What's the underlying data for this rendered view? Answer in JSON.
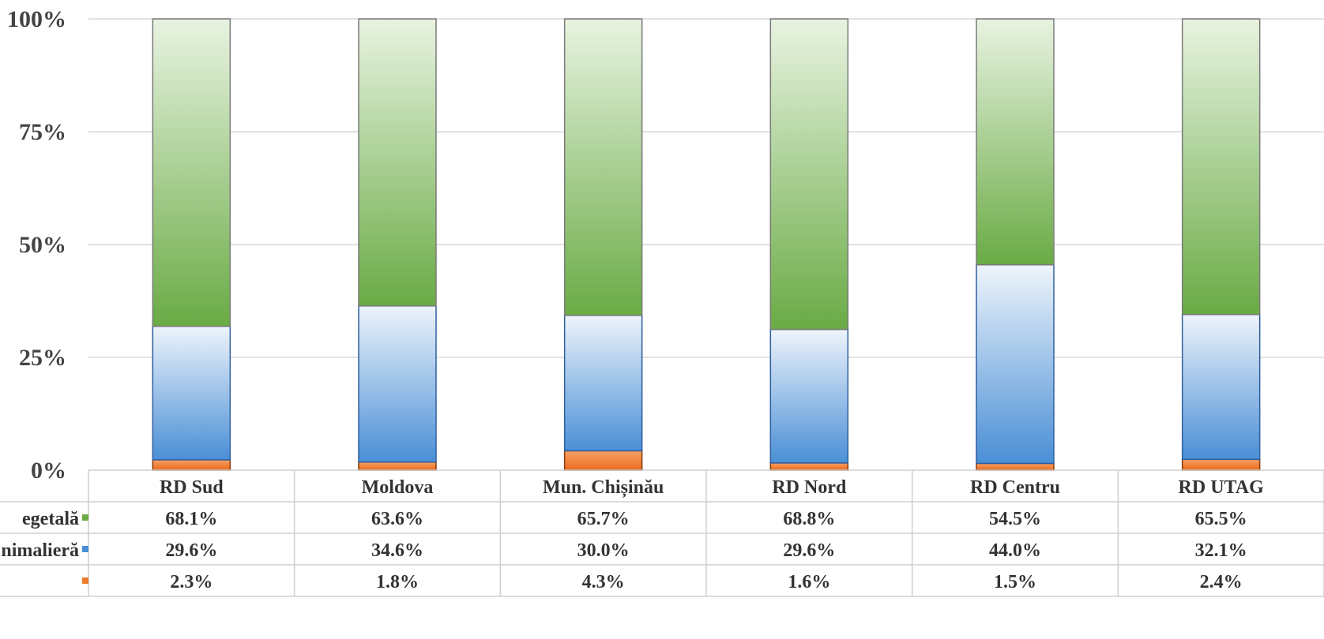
{
  "chart_data": {
    "type": "bar",
    "stacked": "percent",
    "categories": [
      "RD Sud",
      "Moldova",
      "Mun. Chișinău",
      "RD Nord",
      "RD Centru",
      "RD UTAG"
    ],
    "series": [
      {
        "name": "egetală",
        "values": [
          68.1,
          63.6,
          65.7,
          68.8,
          54.5,
          65.5
        ],
        "labels": [
          "68.1%",
          "63.6%",
          "65.7%",
          "68.8%",
          "54.5%",
          "65.5%"
        ]
      },
      {
        "name": "nimalieră",
        "values": [
          29.6,
          34.6,
          30.0,
          29.6,
          44.0,
          32.1
        ],
        "labels": [
          "29.6%",
          "34.6%",
          "30.0%",
          "29.6%",
          "44.0%",
          "32.1%"
        ]
      },
      {
        "name": "",
        "values": [
          2.3,
          1.8,
          4.3,
          1.6,
          1.5,
          2.4
        ],
        "labels": [
          "2.3%",
          "1.8%",
          "4.3%",
          "1.6%",
          "1.5%",
          "2.4%"
        ]
      }
    ],
    "stack_order_bottom_to_top": [
      2,
      1,
      0
    ],
    "colors": [
      "#6aab45",
      "#4a8fd6",
      "#ef7b2c"
    ],
    "yticks": [
      "0%",
      "25%",
      "50%",
      "75%",
      "100%"
    ],
    "ylim": [
      0,
      100
    ],
    "grid": true,
    "legend": "data-table"
  }
}
